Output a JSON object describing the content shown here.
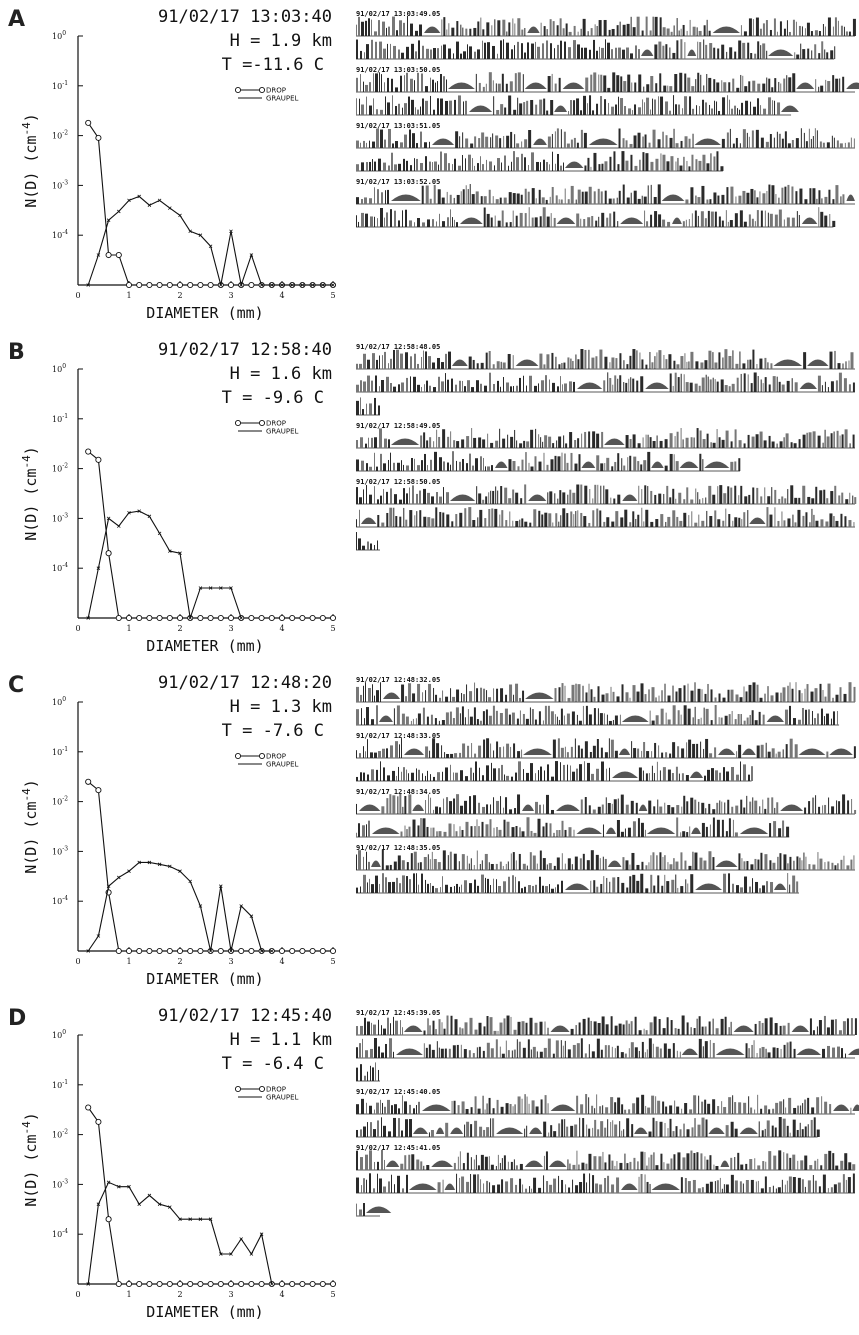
{
  "panels": [
    {
      "letter": "A",
      "timestamp": "91/02/17 13:03:40",
      "height_line": "H = 1.9  km",
      "temp_line": "T =-11.6 C",
      "images": [
        "91/02/17 13:03:49.05",
        "91/02/17 13:03:50.05",
        "91/02/17 13:03:51.05",
        "91/02/17 13:03:52.05"
      ]
    },
    {
      "letter": "B",
      "timestamp": "91/02/17 12:58:40",
      "height_line": "H = 1.6  km",
      "temp_line": "T = -9.6 C",
      "images": [
        "91/02/17 12:58:48.05",
        "91/02/17 12:58:49.05",
        "91/02/17 12:58:50.05"
      ]
    },
    {
      "letter": "C",
      "timestamp": "91/02/17 12:48:20",
      "height_line": "H = 1.3  km",
      "temp_line": "T = -7.6  C",
      "images": [
        "91/02/17 12:48:32.05",
        "91/02/17 12:48:33.05",
        "91/02/17 12:48:34.05",
        "91/02/17 12:48:35.05"
      ]
    },
    {
      "letter": "D",
      "timestamp": "91/02/17 12:45:40",
      "height_line": "H = 1.1  km",
      "temp_line": "T = -6.4  C",
      "images": [
        "91/02/17 12:45:39.05",
        "91/02/17 12:45:40.05",
        "91/02/17 12:45:41.05"
      ]
    }
  ],
  "chart_data": [
    {
      "panel": "A",
      "type": "line",
      "xlabel": "DIAMETER (mm)",
      "ylabel": "N(D) (cm^-4)",
      "xlim": [
        0,
        5
      ],
      "ylim_log10": [
        -5,
        0
      ],
      "yscale": "log",
      "x_ticks": [
        "0",
        "1",
        "2",
        "3",
        "4",
        "5"
      ],
      "y_ticks": [
        "10^0",
        "10^-1",
        "10^-2",
        "10^-3",
        "10^-4"
      ],
      "legend": "top-right",
      "series": [
        {
          "name": "DROP",
          "marker": "circle",
          "x": [
            0.2,
            0.4,
            0.6,
            0.8,
            1.0,
            1.2,
            1.4,
            1.6,
            1.8,
            2.0,
            2.2,
            2.4,
            2.6,
            2.8,
            3.0,
            3.2,
            3.4,
            3.6,
            3.8,
            4.0,
            4.2,
            4.4,
            4.6,
            4.8,
            5.0
          ],
          "y": [
            0.018,
            0.009,
            4e-05,
            4e-05,
            1e-05,
            1e-05,
            1e-05,
            1e-05,
            1e-05,
            1e-05,
            1e-05,
            1e-05,
            1e-05,
            1e-05,
            1e-05,
            1e-05,
            1e-05,
            1e-05,
            1e-05,
            1e-05,
            1e-05,
            1e-05,
            1e-05,
            1e-05,
            1e-05
          ]
        },
        {
          "name": "GRAUPEL",
          "marker": "tick",
          "x": [
            0.2,
            0.4,
            0.6,
            0.8,
            1.0,
            1.2,
            1.4,
            1.6,
            1.8,
            2.0,
            2.2,
            2.4,
            2.6,
            2.8,
            3.0,
            3.2,
            3.4,
            3.6,
            3.8,
            4.0,
            4.2,
            4.4,
            4.6,
            4.8,
            5.0
          ],
          "y": [
            1e-05,
            4e-05,
            0.0002,
            0.0003,
            0.0005,
            0.0006,
            0.0004,
            0.0005,
            0.00035,
            0.00025,
            0.00012,
            0.0001,
            6e-05,
            1e-05,
            0.00012,
            1e-05,
            4e-05,
            1e-05,
            1e-05,
            1e-05,
            1e-05,
            1e-05,
            1e-05,
            1e-05,
            1e-05
          ]
        }
      ]
    },
    {
      "panel": "B",
      "type": "line",
      "xlabel": "DIAMETER (mm)",
      "ylabel": "N(D) (cm^-4)",
      "xlim": [
        0,
        5
      ],
      "ylim_log10": [
        -5,
        0
      ],
      "yscale": "log",
      "x_ticks": [
        "0",
        "1",
        "2",
        "3",
        "4",
        "5"
      ],
      "y_ticks": [
        "10^0",
        "10^-1",
        "10^-2",
        "10^-3",
        "10^-4"
      ],
      "legend": "top-right",
      "series": [
        {
          "name": "DROP",
          "marker": "circle",
          "x": [
            0.2,
            0.4,
            0.6,
            0.8,
            1.0,
            1.2,
            1.4,
            1.6,
            1.8,
            2.0,
            2.2,
            2.4,
            2.6,
            2.8,
            3.0,
            3.2,
            3.4,
            3.6,
            3.8,
            4.0,
            4.2,
            4.4,
            4.6,
            4.8,
            5.0
          ],
          "y": [
            0.022,
            0.015,
            0.0002,
            1e-05,
            1e-05,
            1e-05,
            1e-05,
            1e-05,
            1e-05,
            1e-05,
            1e-05,
            1e-05,
            1e-05,
            1e-05,
            1e-05,
            1e-05,
            1e-05,
            1e-05,
            1e-05,
            1e-05,
            1e-05,
            1e-05,
            1e-05,
            1e-05,
            1e-05
          ]
        },
        {
          "name": "GRAUPEL",
          "marker": "tick",
          "x": [
            0.2,
            0.4,
            0.6,
            0.8,
            1.0,
            1.2,
            1.4,
            1.6,
            1.8,
            2.0,
            2.2,
            2.4,
            2.6,
            2.8,
            3.0,
            3.2
          ],
          "y": [
            1e-05,
            0.0001,
            0.001,
            0.0007,
            0.0013,
            0.0014,
            0.0011,
            0.0005,
            0.00022,
            0.0002,
            1e-05,
            4e-05,
            4e-05,
            4e-05,
            4e-05,
            1e-05
          ]
        }
      ]
    },
    {
      "panel": "C",
      "type": "line",
      "xlabel": "DIAMETER (mm)",
      "ylabel": "N(D) (cm^-4)",
      "xlim": [
        0,
        5
      ],
      "ylim_log10": [
        -5,
        0
      ],
      "yscale": "log",
      "x_ticks": [
        "0",
        "1",
        "2",
        "3",
        "4",
        "5"
      ],
      "y_ticks": [
        "10^0",
        "10^-1",
        "10^-2",
        "10^-3",
        "10^-4"
      ],
      "legend": "top-right",
      "series": [
        {
          "name": "DROP",
          "marker": "circle",
          "x": [
            0.2,
            0.4,
            0.6,
            0.8,
            1.0,
            1.2,
            1.4,
            1.6,
            1.8,
            2.0,
            2.2,
            2.4,
            2.6,
            2.8,
            3.0,
            3.2,
            3.4,
            3.6,
            3.8,
            4.0,
            4.2,
            4.4,
            4.6,
            4.8,
            5.0
          ],
          "y": [
            0.025,
            0.017,
            0.00015,
            1e-05,
            1e-05,
            1e-05,
            1e-05,
            1e-05,
            1e-05,
            1e-05,
            1e-05,
            1e-05,
            1e-05,
            1e-05,
            1e-05,
            1e-05,
            1e-05,
            1e-05,
            1e-05,
            1e-05,
            1e-05,
            1e-05,
            1e-05,
            1e-05,
            1e-05
          ]
        },
        {
          "name": "GRAUPEL",
          "marker": "tick",
          "x": [
            0.2,
            0.4,
            0.6,
            0.8,
            1.0,
            1.2,
            1.4,
            1.6,
            1.8,
            2.0,
            2.2,
            2.4,
            2.6,
            2.8,
            3.0,
            3.2,
            3.4,
            3.6,
            3.8
          ],
          "y": [
            1e-05,
            2e-05,
            0.0002,
            0.0003,
            0.0004,
            0.0006,
            0.0006,
            0.00055,
            0.0005,
            0.0004,
            0.00025,
            8e-05,
            1e-05,
            0.0002,
            1e-05,
            8e-05,
            5e-05,
            1e-05,
            1e-05
          ]
        }
      ]
    },
    {
      "panel": "D",
      "type": "line",
      "xlabel": "DIAMETER (mm)",
      "ylabel": "N(D) (cm^-4)",
      "xlim": [
        0,
        5
      ],
      "ylim_log10": [
        -5,
        0
      ],
      "yscale": "log",
      "x_ticks": [
        "0",
        "1",
        "2",
        "3",
        "4",
        "5"
      ],
      "y_ticks": [
        "10^0",
        "10^-1",
        "10^-2",
        "10^-3",
        "10^-4"
      ],
      "legend": "top-right",
      "series": [
        {
          "name": "DROP",
          "marker": "circle",
          "x": [
            0.2,
            0.4,
            0.6,
            0.8,
            1.0,
            1.2,
            1.4,
            1.6,
            1.8,
            2.0,
            2.2,
            2.4,
            2.6,
            2.8,
            3.0,
            3.2,
            3.4,
            3.6,
            3.8,
            4.0,
            4.2,
            4.4,
            4.6,
            4.8,
            5.0
          ],
          "y": [
            0.035,
            0.018,
            0.0002,
            1e-05,
            1e-05,
            1e-05,
            1e-05,
            1e-05,
            1e-05,
            1e-05,
            1e-05,
            1e-05,
            1e-05,
            1e-05,
            1e-05,
            1e-05,
            1e-05,
            1e-05,
            1e-05,
            1e-05,
            1e-05,
            1e-05,
            1e-05,
            1e-05,
            1e-05
          ]
        },
        {
          "name": "GRAUPEL",
          "marker": "tick",
          "x": [
            0.2,
            0.4,
            0.6,
            0.8,
            1.0,
            1.2,
            1.4,
            1.6,
            1.8,
            2.0,
            2.2,
            2.4,
            2.6,
            2.8,
            3.0,
            3.2,
            3.4,
            3.6,
            3.8
          ],
          "y": [
            1e-05,
            0.0004,
            0.0011,
            0.0009,
            0.0009,
            0.0004,
            0.0006,
            0.0004,
            0.00035,
            0.0002,
            0.0002,
            0.0002,
            0.0002,
            4e-05,
            4e-05,
            8e-05,
            4e-05,
            0.0001,
            1e-05
          ]
        }
      ]
    }
  ]
}
